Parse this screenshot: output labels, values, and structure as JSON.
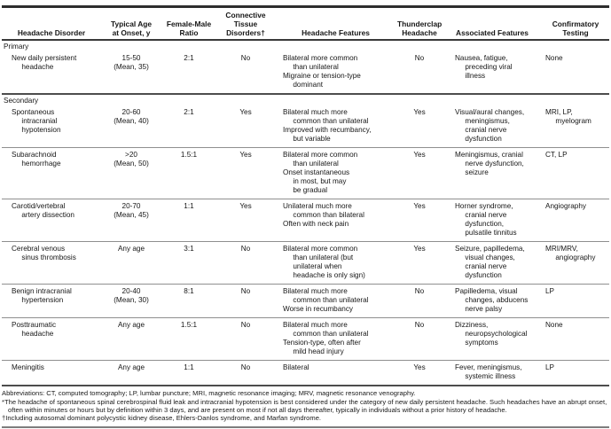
{
  "table": {
    "columns": [
      "Headache Disorder",
      "Typical Age\nat Onset, y",
      "Female-Male\nRatio",
      "Connective\nTissue\nDisorders†",
      "Headache Features",
      "Thunderclap\nHeadache",
      "Associated Features",
      "Confirmatory\nTesting"
    ],
    "sections": [
      {
        "label": "Primary",
        "rows": [
          {
            "cells": [
              "New daily persistent\n     headache",
              "15-50\n(Mean, 35)",
              "2:1",
              "No",
              "Bilateral more common\n     than unilateral\nMigraine or tension-type\n     dominant",
              "No",
              "Nausea, fatigue,\n     preceding viral\n     illness",
              "None"
            ]
          }
        ]
      },
      {
        "label": "Secondary",
        "rows": [
          {
            "cells": [
              "Spontaneous\n     intracranial\n     hypotension",
              "20-60\n(Mean, 40)",
              "2:1",
              "Yes",
              "Bilateral much more\n     common than unilateral\nImproved with recumbancy,\n     but variable",
              "Yes",
              "Visual/aural changes,\n     meningismus,\n     cranial nerve\n     dysfunction",
              "MRI, LP,\n     myelogram"
            ]
          },
          {
            "cells": [
              "Subarachnoid\n     hemorrhage",
              ">20\n(Mean, 50)",
              "1.5:1",
              "Yes",
              "Bilateral more common\n     than unilateral\nOnset instantaneous\n     in most, but may\n     be gradual",
              "Yes",
              "Meningismus, cranial\n     nerve dysfunction,\n     seizure",
              "CT, LP"
            ]
          },
          {
            "cells": [
              "Carotid/vertebral\n     artery dissection",
              "20-70\n(Mean, 45)",
              "1:1",
              "Yes",
              "Unilateral much more\n     common than bilateral\nOften with neck pain",
              "Yes",
              "Horner syndrome,\n     cranial nerve\n     dysfunction,\n     pulsatile tinnitus",
              "Angiography"
            ]
          },
          {
            "cells": [
              "Cerebral venous\n     sinus thrombosis",
              "Any age",
              "3:1",
              "No",
              "Bilateral more common\n     than unilateral (but\n     unilateral when\n     headache is only sign)",
              "Yes",
              "Seizure, papilledema,\n     visual changes,\n     cranial nerve\n     dysfunction",
              "MRI/MRV,\n     angiography"
            ]
          },
          {
            "cells": [
              "Benign intracranial\n     hypertension",
              "20-40\n(Mean, 30)",
              "8:1",
              "No",
              "Bilateral much more\n     common than unilateral\nWorse in recumbancy",
              "No",
              "Papilledema, visual\n     changes, abducens\n     nerve palsy",
              "LP"
            ]
          },
          {
            "cells": [
              "Posttraumatic\n     headache",
              "Any age",
              "1.5:1",
              "No",
              "Bilateral much more\n     common than unilateral\nTension-type, often after\n     mild head injury",
              "No",
              "Dizziness,\n     neuropsychological\n     symptoms",
              "None"
            ]
          },
          {
            "cells": [
              "Meningitis",
              "Any age",
              "1:1",
              "No",
              "Bilateral",
              "Yes",
              "Fever, meningismus,\n     systemic illness",
              "LP"
            ]
          }
        ]
      }
    ]
  },
  "footnotes": [
    "Abbreviations: CT, computed tomography; LP, lumbar puncture; MRI, magnetic resonance imaging; MRV, magnetic resonance venography.",
    "*The headache of spontaneous spinal cerebrospinal fluid leak and intracranial hypotension is best considered under the category of new daily persistent headache. Such headaches have an abrupt onset, often within minutes or hours but by definition within 3 days, and are present on most if not all days thereafter, typically in individuals without a prior history of headache.",
    "†Including autosomal dominant polycystic kidney disease, Ehlers-Danlos syndrome, and Marfan syndrome."
  ]
}
